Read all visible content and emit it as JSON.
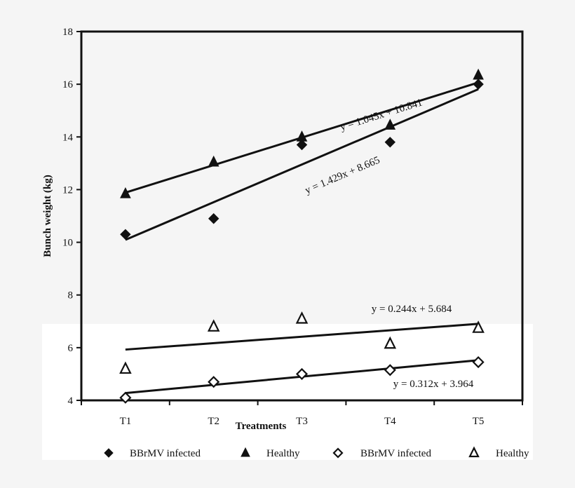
{
  "chart_data": {
    "type": "scatter",
    "title": "",
    "xlabel": "Treatments",
    "ylabel": "Bunch weight (kg)",
    "categories": [
      "T1",
      "T2",
      "T3",
      "T4",
      "T5"
    ],
    "ylim": [
      4,
      18
    ],
    "yticks": [
      4,
      6,
      8,
      10,
      12,
      14,
      16,
      18
    ],
    "ytick_labels": [
      "4",
      "6",
      "8",
      "10",
      "12",
      "14",
      "16",
      "18"
    ],
    "grid": false,
    "legend_position": "bottom",
    "series": [
      {
        "name": "BBrMV infected",
        "marker": "filled-diamond",
        "values": [
          10.3,
          10.9,
          13.7,
          13.8,
          16.0
        ],
        "trendline": {
          "slope": 1.429,
          "intercept": 8.665,
          "label": "y = 1.429x + 8.665"
        }
      },
      {
        "name": "Healthy",
        "marker": "filled-triangle",
        "values": [
          11.85,
          13.05,
          14.0,
          14.45,
          16.35
        ],
        "trendline": {
          "slope": 1.045,
          "intercept": 10.841,
          "label": "y = 1.045x + 10.841"
        }
      },
      {
        "name": "BBrMV infected",
        "marker": "open-diamond",
        "values": [
          4.1,
          4.7,
          5.0,
          5.15,
          5.45
        ],
        "trendline": {
          "slope": 0.312,
          "intercept": 3.964,
          "label": "y = 0.312x + 3.964"
        }
      },
      {
        "name": "Healthy",
        "marker": "open-triangle",
        "values": [
          5.2,
          6.8,
          7.1,
          6.15,
          6.75
        ],
        "trendline": {
          "slope": 0.244,
          "intercept": 5.684,
          "label": "y = 0.244x + 5.684"
        }
      }
    ],
    "colors": {
      "ink": "#111111",
      "background": "#f5f5f5"
    }
  }
}
